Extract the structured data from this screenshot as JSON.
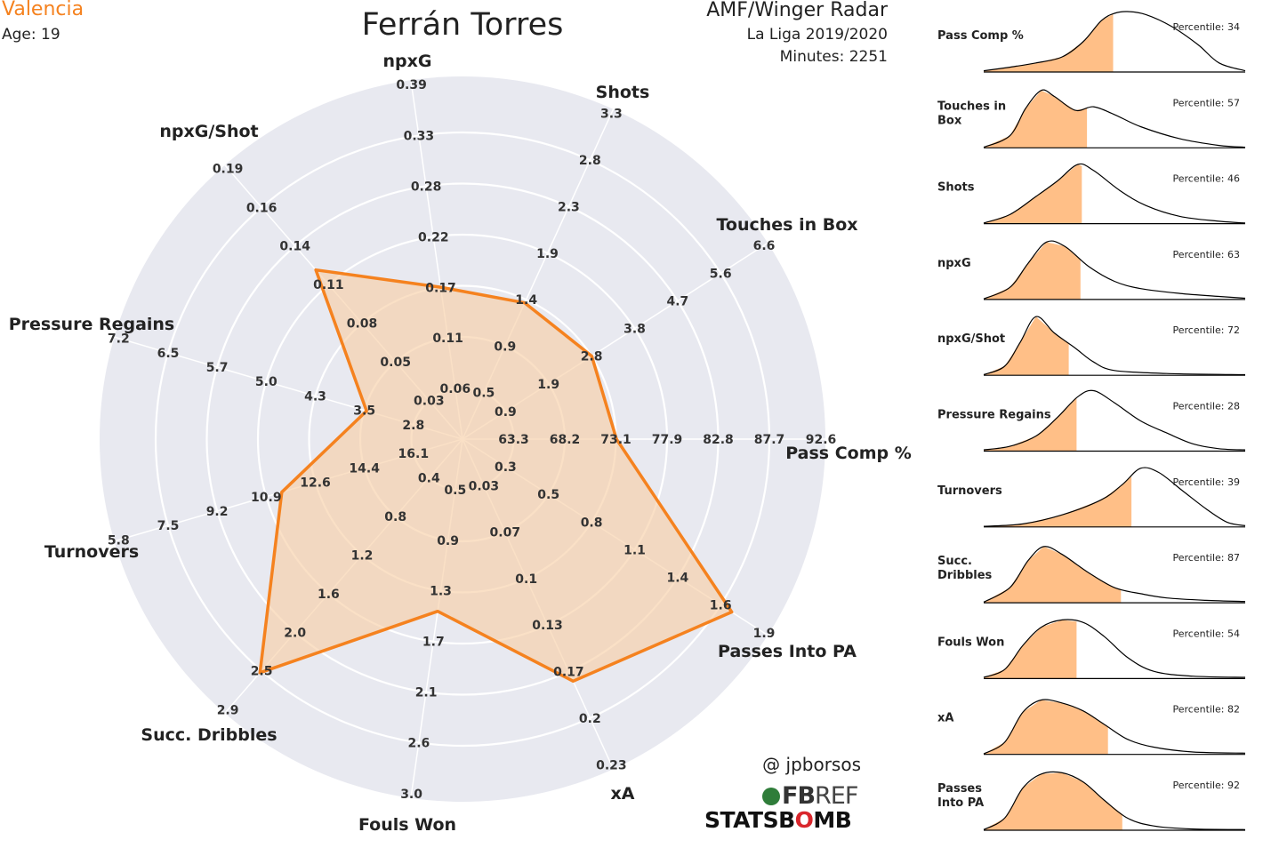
{
  "header": {
    "club": "Valencia",
    "age": "Age: 19",
    "player": "Ferrán Torres",
    "radar_title": "AMF/Winger Radar",
    "league": "La Liga 2019/2020",
    "minutes": "Minutes: 2251"
  },
  "credits": {
    "handle": "@ jpborsos",
    "fbref_a": "FB",
    "fbref_b": "REF",
    "statsbomb_a": "STATSB",
    "statsbomb_b": "O",
    "statsbomb_c": "MB"
  },
  "colors": {
    "accent": "#f5821f",
    "fill": "#f7cfa8",
    "background_disc": "#e8e9f0",
    "grid": "#ffffff",
    "kde_fill": "#ffbf87"
  },
  "chart_data": [
    {
      "type": "radar",
      "axes": [
        {
          "name": "Pass Comp %",
          "ticks": [
            "63.3",
            "68.2",
            "73.1",
            "77.9",
            "82.8",
            "87.7",
            "92.6"
          ],
          "value": 73.1
        },
        {
          "name": "Touches in Box",
          "ticks": [
            "0.9",
            "1.9",
            "2.8",
            "3.8",
            "4.7",
            "5.6",
            "6.6"
          ],
          "value": 2.8
        },
        {
          "name": "Shots",
          "ticks": [
            "0.5",
            "0.9",
            "1.4",
            "1.9",
            "2.3",
            "2.8",
            "3.3"
          ],
          "value": 1.4
        },
        {
          "name": "npxG",
          "ticks": [
            "0.06",
            "0.11",
            "0.17",
            "0.22",
            "0.28",
            "0.33",
            "0.39"
          ],
          "value": 0.17
        },
        {
          "name": "npxG/Shot",
          "ticks": [
            "0.03",
            "0.05",
            "0.08",
            "0.11",
            "0.14",
            "0.16",
            "0.19"
          ],
          "value": 0.12
        },
        {
          "name": "Pressure Regains",
          "ticks": [
            "2.8",
            "3.5",
            "4.3",
            "5.0",
            "5.7",
            "6.5",
            "7.2"
          ],
          "value": 3.5
        },
        {
          "name": "Turnovers",
          "ticks": [
            "16.1",
            "14.4",
            "12.6",
            "10.9",
            "9.2",
            "7.5",
            "5.8"
          ],
          "value": 11.5
        },
        {
          "name": "Succ. Dribbles",
          "ticks": [
            "0.4",
            "0.8",
            "1.2",
            "1.6",
            "2.0",
            "2.5",
            "2.9"
          ],
          "value": 2.5
        },
        {
          "name": "Fouls Won",
          "ticks": [
            "0.5",
            "0.9",
            "1.3",
            "1.7",
            "2.1",
            "2.6",
            "3.0"
          ],
          "value": 1.5
        },
        {
          "name": "xA",
          "ticks": [
            "0.03",
            "0.07",
            "0.1",
            "0.13",
            "0.17",
            "0.2",
            "0.23"
          ],
          "value": 0.17
        },
        {
          "name": "Passes Into PA",
          "ticks": [
            "0.3",
            "0.5",
            "0.8",
            "1.1",
            "1.4",
            "1.6",
            "1.9"
          ],
          "value": 1.7
        }
      ]
    },
    {
      "type": "area",
      "panels": [
        {
          "label": "Pass Comp %",
          "percentile": "Percentile: 34",
          "pct": 34
        },
        {
          "label": "Touches in Box",
          "percentile": "Percentile: 57",
          "pct": 57
        },
        {
          "label": "Shots",
          "percentile": "Percentile: 46",
          "pct": 46
        },
        {
          "label": "npxG",
          "percentile": "Percentile: 63",
          "pct": 63
        },
        {
          "label": "npxG/Shot",
          "percentile": "Percentile: 72",
          "pct": 72
        },
        {
          "label": "Pressure Regains",
          "percentile": "Percentile: 28",
          "pct": 28
        },
        {
          "label": "Turnovers",
          "percentile": "Percentile: 39",
          "pct": 39
        },
        {
          "label": "Succ. Dribbles",
          "percentile": "Percentile: 87",
          "pct": 87
        },
        {
          "label": "Fouls Won",
          "percentile": "Percentile: 54",
          "pct": 54
        },
        {
          "label": "xA",
          "percentile": "Percentile: 82",
          "pct": 82
        },
        {
          "label": "Passes Into PA",
          "percentile": "Percentile: 92",
          "pct": 92
        }
      ]
    }
  ]
}
